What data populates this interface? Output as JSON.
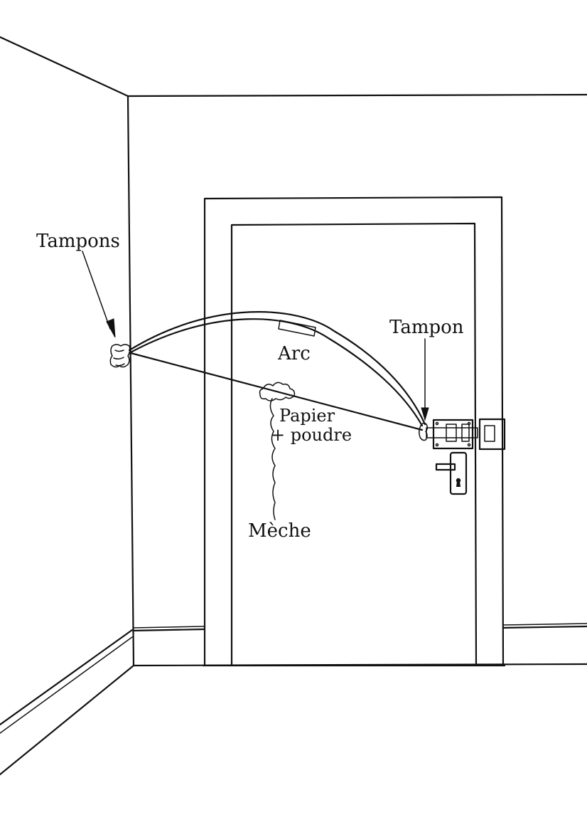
{
  "labels": {
    "tampons": "Tampons",
    "tampon": "Tampon",
    "arc": "Arc",
    "papier": "Papier",
    "poudre": "+ poudre",
    "meche": "Mèche"
  }
}
